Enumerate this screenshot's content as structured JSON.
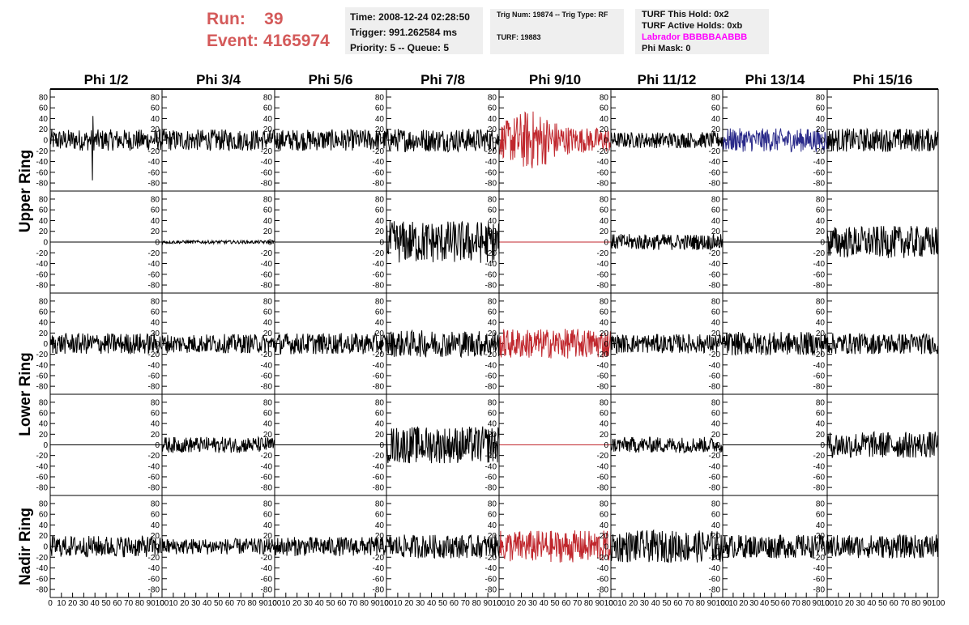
{
  "header": {
    "run_label": "Run:",
    "run_value": "39",
    "event_label": "Event:",
    "event_value": "4165974",
    "time": "Time: 2008-12-24 02:28:50",
    "trigger": "Trigger: 991.262584 ms",
    "priority": "Priority: 5 -- Queue: 5",
    "trig_num": "Trig Num: 19874 -- Trig Type: RF",
    "turf": "TURF: 19883",
    "turf_hold": "TURF This Hold: 0x2",
    "turf_active": "TURF Active Holds: 0xb",
    "labrador": "Labrador BBBBBAABBB",
    "phi_mask": "Phi Mask: 0"
  },
  "chart_data": {
    "type": "line",
    "columns": [
      "Phi 1/2",
      "Phi 3/4",
      "Phi 5/6",
      "Phi 7/8",
      "Phi 9/10",
      "Phi 11/12",
      "Phi 13/14",
      "Phi 15/16"
    ],
    "row_labels": [
      "Upper Ring",
      "Lower Ring",
      "Nadir Ring"
    ],
    "rows_per_ring": [
      2,
      2,
      1
    ],
    "ylim": [
      -95,
      95
    ],
    "xlim": [
      0,
      100
    ],
    "y_ticks": [
      80,
      60,
      40,
      20,
      0,
      -20,
      -40,
      -60,
      -80
    ],
    "x_ticks": [
      "0",
      "10",
      "20",
      "30",
      "40",
      "50",
      "60",
      "70",
      "80",
      "90",
      "100"
    ],
    "colors": {
      "default": "#000000",
      "red": "#c0272d",
      "blue": "#2a2a8a",
      "header_red": "#d45a5a",
      "labrador": "#ff00ff"
    },
    "traces": [
      [
        {
          "amp": 20,
          "color": "default",
          "spike": [
            38,
            -75,
            45
          ]
        },
        {
          "amp": 20,
          "color": "default"
        },
        {
          "amp": 20,
          "color": "default"
        },
        {
          "amp": 22,
          "color": "default"
        },
        {
          "amp": 42,
          "color": "red",
          "burst": [
            28,
            50
          ]
        },
        {
          "amp": 15,
          "color": "default"
        },
        {
          "amp": 22,
          "color": "blue"
        },
        {
          "amp": 22,
          "color": "default"
        }
      ],
      [
        {
          "amp": 0,
          "color": "default"
        },
        {
          "amp": 3,
          "color": "default"
        },
        {
          "amp": 0,
          "color": "default"
        },
        {
          "amp": 40,
          "color": "default"
        },
        {
          "amp": 0,
          "color": "red"
        },
        {
          "amp": 15,
          "color": "default"
        },
        {
          "amp": 0,
          "color": "default"
        },
        {
          "amp": 30,
          "color": "default"
        }
      ],
      [
        {
          "amp": 20,
          "color": "default"
        },
        {
          "amp": 18,
          "color": "default"
        },
        {
          "amp": 20,
          "color": "default"
        },
        {
          "amp": 25,
          "color": "default"
        },
        {
          "amp": 28,
          "color": "red"
        },
        {
          "amp": 18,
          "color": "default"
        },
        {
          "amp": 22,
          "color": "default"
        },
        {
          "amp": 20,
          "color": "default"
        }
      ],
      [
        {
          "amp": 0,
          "color": "default"
        },
        {
          "amp": 15,
          "color": "default"
        },
        {
          "amp": 0,
          "color": "default"
        },
        {
          "amp": 35,
          "color": "default"
        },
        {
          "amp": 0,
          "color": "red"
        },
        {
          "amp": 15,
          "color": "default"
        },
        {
          "amp": 0,
          "color": "default"
        },
        {
          "amp": 25,
          "color": "default"
        }
      ],
      [
        {
          "amp": 20,
          "color": "default"
        },
        {
          "amp": 15,
          "color": "default"
        },
        {
          "amp": 18,
          "color": "default"
        },
        {
          "amp": 22,
          "color": "default"
        },
        {
          "amp": 30,
          "color": "red"
        },
        {
          "amp": 30,
          "color": "default"
        },
        {
          "amp": 22,
          "color": "default"
        },
        {
          "amp": 22,
          "color": "default"
        }
      ]
    ]
  }
}
